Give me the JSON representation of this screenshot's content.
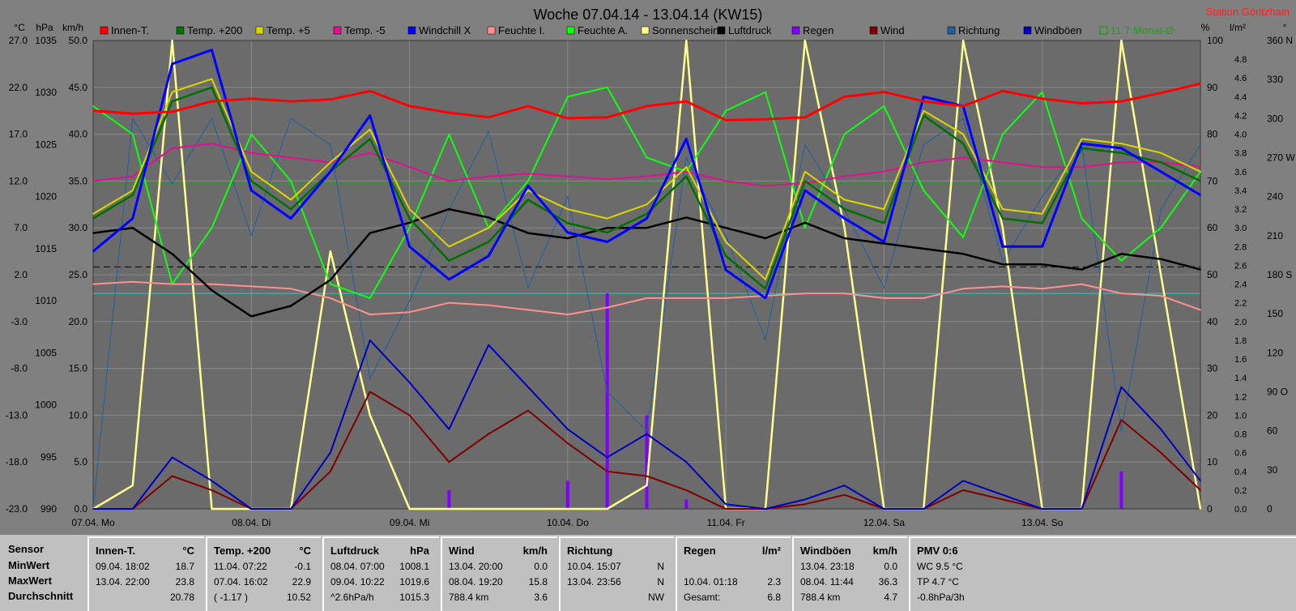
{
  "title": "Woche 07.04.14 - 13.04.14 (KW15)",
  "station": "Station Göritzhain",
  "colors": {
    "background": "#808080",
    "panel": "#c0c0c0",
    "station": "#ff2020"
  },
  "axes": {
    "unit_labels": [
      "°C",
      "hPa",
      "km/h",
      "%",
      "l/m²",
      "°"
    ],
    "temp_ticks": [
      "27.0",
      "22.0",
      "17.0",
      "12.0",
      "7.0",
      "2.0",
      "-3.0",
      "-8.0",
      "-13.0",
      "-18.0",
      "-23.0"
    ],
    "hpa_ticks": [
      "1035",
      "1030",
      "1025",
      "1020",
      "1015",
      "1010",
      "1005",
      "1000",
      "995",
      "990"
    ],
    "kmh_ticks": [
      "50.0",
      "45.0",
      "40.0",
      "35.0",
      "30.0",
      "25.0",
      "20.0",
      "15.0",
      "10.0",
      "5.0",
      "0.0"
    ],
    "pct_ticks": [
      "100",
      "90",
      "80",
      "70",
      "60",
      "50",
      "40",
      "30",
      "20",
      "10",
      "0"
    ],
    "rain_ticks": [
      "4.8",
      "4.6",
      "4.4",
      "4.2",
      "4.0",
      "3.8",
      "3.6",
      "3.4",
      "3.2",
      "3.0",
      "2.8",
      "2.6",
      "2.4",
      "2.2",
      "2.0",
      "1.8",
      "1.6",
      "1.4",
      "1.2",
      "1.0",
      "0.8",
      "0.6",
      "0.4",
      "0.2",
      "0.0"
    ],
    "dir_ticks": [
      "360 N",
      "330",
      "300",
      "270 W",
      "240",
      "210",
      "180 S",
      "150",
      "120",
      "90 O",
      "60",
      "30",
      "0"
    ],
    "x_ticks": [
      "07.04. Mo",
      "08.04. Di",
      "09.04. Mi",
      "10.04. Do",
      "11.04. Fr",
      "12.04. Sa",
      "13.04. So"
    ]
  },
  "chart_data": {
    "type": "line",
    "title": "Woche 07.04.14 - 13.04.14 (KW15)",
    "x": [
      0,
      6,
      12,
      18,
      24,
      30,
      36,
      42,
      48,
      54,
      60,
      66,
      72,
      78,
      84,
      90,
      96,
      102,
      108,
      114,
      120,
      126,
      132,
      138,
      144,
      150,
      156,
      162,
      168
    ],
    "xlabel": "",
    "ylabel": "",
    "x_range_hours": [
      0,
      168
    ],
    "temp_range": [
      -23,
      27
    ],
    "hpa_range": [
      990,
      1035
    ],
    "kmh_range": [
      0,
      50
    ],
    "pct_range": [
      0,
      100
    ],
    "rain_range": [
      0,
      5
    ],
    "dir_range": [
      0,
      360
    ],
    "reference_lines": [
      {
        "name": "11.7 Monat-Ø",
        "axis": "temp",
        "value": 11.7,
        "color": "#20a020"
      },
      {
        "name": "",
        "axis": "hpa",
        "value": 1013.25,
        "color": "#000000"
      },
      {
        "name": "",
        "axis": "temp",
        "value": 0.0,
        "color": "#40c0c0"
      }
    ],
    "series": [
      {
        "name": "Innen-T.",
        "color": "#ff0000",
        "axis": "temp",
        "values": [
          19.5,
          19.2,
          19.4,
          20.5,
          20.8,
          20.5,
          20.7,
          21.6,
          20.0,
          19.3,
          18.8,
          20.0,
          18.7,
          18.8,
          20.0,
          20.5,
          18.5,
          18.6,
          18.8,
          21.0,
          21.5,
          20.5,
          20.0,
          21.6,
          20.8,
          20.3,
          20.5,
          21.4,
          22.4
        ]
      },
      {
        "name": "Temp. +200",
        "color": "#007000",
        "axis": "temp",
        "values": [
          8.0,
          10.5,
          20.5,
          22.0,
          12.0,
          9.0,
          13.0,
          16.5,
          8.0,
          3.5,
          5.5,
          10.0,
          7.5,
          6.5,
          8.5,
          12.5,
          4.0,
          0.5,
          12.0,
          9.0,
          7.5,
          19.0,
          16.0,
          8.0,
          7.5,
          15.5,
          15.0,
          14.0,
          12.0
        ]
      },
      {
        "name": "Temp. +5",
        "color": "#d8d800",
        "axis": "temp",
        "values": [
          8.5,
          11.0,
          21.5,
          22.9,
          13.0,
          10.0,
          14.0,
          17.5,
          9.0,
          5.0,
          7.0,
          11.0,
          9.0,
          8.0,
          9.5,
          13.5,
          5.5,
          1.5,
          13.0,
          10.0,
          9.0,
          19.5,
          17.0,
          9.0,
          8.5,
          16.5,
          16.0,
          15.0,
          13.0
        ]
      },
      {
        "name": "Temp. -5",
        "color": "#e01090",
        "axis": "temp",
        "values": [
          12.0,
          12.5,
          15.5,
          16.0,
          15.0,
          14.5,
          14.0,
          15.0,
          13.5,
          12.0,
          12.5,
          12.8,
          12.5,
          12.2,
          12.5,
          13.0,
          12.0,
          11.5,
          11.8,
          12.5,
          13.0,
          14.0,
          14.5,
          14.0,
          13.5,
          13.5,
          14.0,
          14.0,
          13.5
        ]
      },
      {
        "name": "Windchill X",
        "color": "#0000ff",
        "axis": "temp",
        "values": [
          4.5,
          8.0,
          24.5,
          26.0,
          11.0,
          8.0,
          13.0,
          19.0,
          5.0,
          1.5,
          4.0,
          11.5,
          6.5,
          5.5,
          8.0,
          16.5,
          2.5,
          -0.5,
          11.0,
          8.0,
          5.5,
          21.0,
          20.0,
          5.0,
          5.0,
          16.0,
          15.5,
          13.0,
          10.5
        ]
      },
      {
        "name": "Feuchte I.",
        "color": "#ff9090",
        "axis": "pct",
        "values": [
          48.0,
          48.5,
          48.0,
          48.0,
          47.5,
          47.0,
          45.0,
          41.5,
          42.0,
          44.0,
          43.5,
          42.5,
          41.5,
          43.0,
          45.0,
          45.0,
          45.0,
          45.5,
          46.0,
          46.0,
          45.0,
          45.0,
          47.0,
          47.5,
          47.0,
          48.0,
          46.0,
          45.5,
          42.5
        ]
      },
      {
        "name": "Feuchte A.",
        "color": "#10ff10",
        "axis": "pct",
        "values": [
          86.0,
          80.0,
          48.0,
          60.0,
          80.0,
          70.0,
          48.0,
          45.0,
          60.0,
          80.0,
          60.0,
          70.0,
          88.0,
          90.0,
          75.0,
          72.0,
          85.0,
          89.0,
          60.0,
          80.0,
          86.0,
          68.0,
          58.0,
          80.0,
          89.0,
          62.0,
          53.0,
          60.0,
          72.0
        ]
      },
      {
        "name": "Sonnenschein",
        "color": "#ffff90",
        "axis": "pct",
        "values": [
          0.0,
          5.0,
          100.0,
          0.0,
          0.0,
          0.0,
          55.0,
          20.0,
          0.0,
          0.0,
          0.0,
          0.0,
          0.0,
          0.0,
          5.0,
          100.0,
          0.0,
          0.0,
          100.0,
          60.0,
          0.0,
          0.0,
          100.0,
          60.0,
          0.0,
          0.0,
          100.0,
          50.0,
          0.0
        ]
      },
      {
        "name": "Luftdruck",
        "color": "#000000",
        "axis": "hpa",
        "values": [
          1016.5,
          1017.0,
          1014.5,
          1011.0,
          1008.5,
          1009.5,
          1012.0,
          1016.5,
          1017.5,
          1018.8,
          1018.0,
          1016.5,
          1016.0,
          1017.0,
          1017.0,
          1018.0,
          1017.0,
          1016.0,
          1017.5,
          1016.0,
          1015.5,
          1015.0,
          1014.5,
          1013.5,
          1013.5,
          1013.0,
          1014.5,
          1014.0,
          1013.0
        ]
      },
      {
        "name": "Regen",
        "color": "#8000ff",
        "axis": "rain",
        "values": [
          0.0,
          0.0,
          0.0,
          0.0,
          0.0,
          0.0,
          0.0,
          0.0,
          0.0,
          0.2,
          0.0,
          0.0,
          0.3,
          2.3,
          1.0,
          0.1,
          0.0,
          0.0,
          0.0,
          0.0,
          0.0,
          0.0,
          0.0,
          0.0,
          0.0,
          0.0,
          0.4,
          0.0,
          0.0
        ]
      },
      {
        "name": "Wind",
        "color": "#800000",
        "axis": "kmh",
        "values": [
          0.0,
          0.0,
          3.5,
          2.0,
          0.0,
          0.0,
          4.0,
          12.5,
          10.0,
          5.0,
          8.0,
          10.5,
          7.0,
          4.0,
          3.5,
          2.0,
          0.0,
          0.0,
          0.5,
          1.5,
          0.0,
          0.0,
          2.0,
          1.0,
          0.0,
          0.0,
          9.5,
          6.0,
          2.0
        ]
      },
      {
        "name": "Richtung",
        "color": "#2060a0",
        "axis": "dir",
        "values": [
          0.0,
          300.0,
          250.0,
          300.0,
          210.0,
          300.0,
          280.0,
          100.0,
          160.0,
          230.0,
          290.0,
          170.0,
          240.0,
          90.0,
          60.0,
          270.0,
          210.0,
          130.0,
          280.0,
          230.0,
          170.0,
          280.0,
          300.0,
          190.0,
          240.0,
          280.0,
          60.0,
          230.0,
          280.0
        ]
      },
      {
        "name": "Windböen",
        "color": "#0000c0",
        "axis": "kmh",
        "values": [
          0.0,
          0.0,
          5.5,
          3.0,
          0.0,
          0.0,
          6.0,
          18.0,
          13.5,
          8.5,
          17.5,
          13.0,
          8.5,
          5.5,
          8.0,
          5.0,
          0.5,
          0.0,
          1.0,
          2.5,
          0.0,
          0.0,
          3.0,
          1.5,
          0.0,
          0.0,
          13.0,
          8.5,
          3.0
        ]
      }
    ]
  },
  "legend": [
    {
      "label": "Innen-T.",
      "color": "#ff0000"
    },
    {
      "label": "Temp. +200",
      "color": "#007000"
    },
    {
      "label": "Temp. +5",
      "color": "#d8d800"
    },
    {
      "label": "Temp. -5",
      "color": "#e01090"
    },
    {
      "label": "Windchill X",
      "color": "#0000ff"
    },
    {
      "label": "Feuchte I.",
      "color": "#ff9090"
    },
    {
      "label": "Feuchte A.",
      "color": "#10ff10"
    },
    {
      "label": "Sonnenschein",
      "color": "#ffff90"
    },
    {
      "label": "Luftdruck",
      "color": "#000000"
    },
    {
      "label": "Regen",
      "color": "#8000ff"
    },
    {
      "label": "Wind",
      "color": "#800000"
    },
    {
      "label": "Richtung",
      "color": "#2060a0"
    },
    {
      "label": "Windböen",
      "color": "#0000c0"
    },
    {
      "label": "11.7 Monat-Ø",
      "color": "#20a020",
      "hollow": true
    }
  ],
  "stats": {
    "row_labels": [
      "Sensor",
      "MinWert",
      "MaxWert",
      "Durchschnitt"
    ],
    "panels": [
      {
        "title": "Innen-T.",
        "unit": "°C",
        "rows": [
          [
            "09.04. 18:02",
            "18.7"
          ],
          [
            "13.04. 22:00",
            "23.8"
          ],
          [
            "",
            "20.78"
          ]
        ]
      },
      {
        "title": "Temp. +200",
        "unit": "°C",
        "rows": [
          [
            "11.04. 07:22",
            "-0.1"
          ],
          [
            "07.04. 16:02",
            "22.9"
          ],
          [
            "( -1.17 )",
            "10.52"
          ]
        ]
      },
      {
        "title": "Luftdruck",
        "unit": "hPa",
        "rows": [
          [
            "08.04. 07:00",
            "1008.1"
          ],
          [
            "09.04. 10:22",
            "1019.6"
          ],
          [
            "^2.6hPa/h",
            "1015.3"
          ]
        ]
      },
      {
        "title": "Wind",
        "unit": "km/h",
        "rows": [
          [
            "13.04. 20:00",
            "0.0"
          ],
          [
            "08.04. 19:20",
            "15.8"
          ],
          [
            "788.4 km",
            "3.6"
          ]
        ]
      },
      {
        "title": "Richtung",
        "unit": "",
        "rows": [
          [
            "10.04. 15:07",
            "N"
          ],
          [
            "13.04. 23:56",
            "N"
          ],
          [
            "",
            "NW"
          ]
        ]
      },
      {
        "title": "Regen",
        "unit": "l/m²",
        "rows": [
          [
            "",
            ""
          ],
          [
            "10.04. 01:18",
            "2.3"
          ],
          [
            "Gesamt:",
            "6.8"
          ]
        ]
      },
      {
        "title": "Windböen",
        "unit": "km/h",
        "rows": [
          [
            "13.04. 23:18",
            "0.0"
          ],
          [
            "08.04. 11:44",
            "36.3"
          ],
          [
            "788.4 km",
            "4.7"
          ]
        ]
      },
      {
        "title": "PMV 0:6",
        "unit": "",
        "rows": [
          [
            "WC 9.5 °C",
            ""
          ],
          [
            "TP 4.7 °C",
            ""
          ],
          [
            "-0.8hPa/3h",
            ""
          ]
        ]
      }
    ]
  }
}
